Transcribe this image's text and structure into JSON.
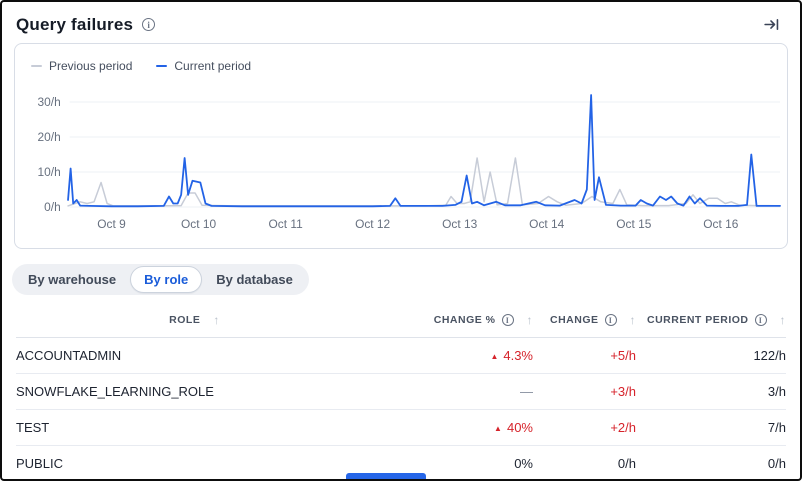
{
  "window": {
    "title": "Query failures"
  },
  "icons": {
    "info": "i",
    "sort_asc": "↑",
    "trend_up": "▲",
    "collapse_right": "arrow-to-bar"
  },
  "colors": {
    "accent_blue": "#2363e6",
    "prev_period_gray": "#c7ccd7",
    "alert_red": "#d6232b",
    "active_tab_blue": "#1a5cd9",
    "grid_line": "#edf0f5"
  },
  "chart_data": {
    "type": "line",
    "title": "Query failures per hour, current vs previous period",
    "xlabel": "",
    "ylabel": "",
    "grid": "horizontal",
    "legend_position": "top-left",
    "xlim": [
      8.52,
      16.68
    ],
    "ylim": [
      0,
      33
    ],
    "yticks": [
      {
        "v": 0,
        "label": "0/h"
      },
      {
        "v": 10,
        "label": "10/h"
      },
      {
        "v": 20,
        "label": "20/h"
      },
      {
        "v": 30,
        "label": "30/h"
      }
    ],
    "xticks": [
      {
        "v": 9,
        "label": "Oct 9"
      },
      {
        "v": 10,
        "label": "Oct 10"
      },
      {
        "v": 11,
        "label": "Oct 11"
      },
      {
        "v": 12,
        "label": "Oct 12"
      },
      {
        "v": 13,
        "label": "Oct 13"
      },
      {
        "v": 14,
        "label": "Oct 14"
      },
      {
        "v": 15,
        "label": "Oct 15"
      },
      {
        "v": 16,
        "label": "Oct 16"
      }
    ],
    "series": [
      {
        "name": "Previous period",
        "color": "#c7ccd7",
        "points": [
          [
            8.5,
            0.3
          ],
          [
            8.58,
            1
          ],
          [
            8.64,
            1.5
          ],
          [
            8.72,
            1
          ],
          [
            8.8,
            1.5
          ],
          [
            8.88,
            7
          ],
          [
            8.95,
            1
          ],
          [
            9.02,
            0.3
          ],
          [
            9.4,
            0.3
          ],
          [
            9.8,
            0.4
          ],
          [
            9.88,
            4
          ],
          [
            9.96,
            4
          ],
          [
            10.04,
            0.5
          ],
          [
            10.4,
            0.3
          ],
          [
            11.0,
            0.3
          ],
          [
            11.6,
            0.3
          ],
          [
            12.2,
            0.3
          ],
          [
            12.6,
            0.3
          ],
          [
            12.84,
            0.5
          ],
          [
            12.9,
            3
          ],
          [
            12.97,
            1
          ],
          [
            13.05,
            1
          ],
          [
            13.12,
            1.5
          ],
          [
            13.2,
            14
          ],
          [
            13.28,
            1.5
          ],
          [
            13.35,
            10
          ],
          [
            13.43,
            0.6
          ],
          [
            13.55,
            1
          ],
          [
            13.64,
            14
          ],
          [
            13.72,
            0.6
          ],
          [
            13.9,
            1
          ],
          [
            14.02,
            3
          ],
          [
            14.12,
            1.5
          ],
          [
            14.22,
            0.5
          ],
          [
            14.4,
            1
          ],
          [
            14.52,
            3
          ],
          [
            14.62,
            1.5
          ],
          [
            14.76,
            1
          ],
          [
            14.84,
            5
          ],
          [
            14.92,
            0.6
          ],
          [
            15.1,
            0.4
          ],
          [
            15.4,
            0.4
          ],
          [
            15.6,
            1
          ],
          [
            15.68,
            3.5
          ],
          [
            15.76,
            1
          ],
          [
            15.86,
            2.5
          ],
          [
            15.96,
            2.5
          ],
          [
            16.05,
            1
          ],
          [
            16.12,
            1.5
          ],
          [
            16.22,
            0.5
          ],
          [
            16.4,
            0.4
          ],
          [
            16.55,
            0.4
          ],
          [
            16.68,
            0.3
          ]
        ]
      },
      {
        "name": "Current period",
        "color": "#2363e6",
        "points": [
          [
            8.5,
            2
          ],
          [
            8.53,
            11
          ],
          [
            8.56,
            1
          ],
          [
            8.6,
            2
          ],
          [
            8.64,
            0.4
          ],
          [
            8.75,
            0.3
          ],
          [
            9.0,
            0.2
          ],
          [
            9.3,
            0.2
          ],
          [
            9.6,
            0.3
          ],
          [
            9.66,
            3
          ],
          [
            9.71,
            1
          ],
          [
            9.76,
            1
          ],
          [
            9.8,
            3.5
          ],
          [
            9.84,
            14
          ],
          [
            9.88,
            3.5
          ],
          [
            9.93,
            7.5
          ],
          [
            10.02,
            7
          ],
          [
            10.08,
            1
          ],
          [
            10.15,
            0.3
          ],
          [
            10.5,
            0.2
          ],
          [
            11.0,
            0.2
          ],
          [
            11.5,
            0.2
          ],
          [
            12.0,
            0.2
          ],
          [
            12.2,
            0.3
          ],
          [
            12.26,
            2.5
          ],
          [
            12.32,
            0.3
          ],
          [
            12.8,
            0.3
          ],
          [
            12.95,
            0.6
          ],
          [
            13.02,
            1.5
          ],
          [
            13.08,
            9
          ],
          [
            13.14,
            1
          ],
          [
            13.2,
            1.5
          ],
          [
            13.28,
            0.5
          ],
          [
            13.42,
            1.5
          ],
          [
            13.52,
            0.5
          ],
          [
            13.7,
            0.5
          ],
          [
            13.88,
            1.5
          ],
          [
            13.98,
            0.5
          ],
          [
            14.15,
            0.4
          ],
          [
            14.32,
            2
          ],
          [
            14.4,
            1
          ],
          [
            14.46,
            5
          ],
          [
            14.51,
            32
          ],
          [
            14.55,
            2
          ],
          [
            14.6,
            8.5
          ],
          [
            14.68,
            0.6
          ],
          [
            14.85,
            0.4
          ],
          [
            15.02,
            0.4
          ],
          [
            15.08,
            2
          ],
          [
            15.15,
            1
          ],
          [
            15.22,
            0.4
          ],
          [
            15.3,
            3
          ],
          [
            15.37,
            2
          ],
          [
            15.43,
            3
          ],
          [
            15.5,
            1
          ],
          [
            15.57,
            0.4
          ],
          [
            15.64,
            3
          ],
          [
            15.7,
            1
          ],
          [
            15.76,
            2.5
          ],
          [
            15.84,
            0.4
          ],
          [
            16.0,
            0.3
          ],
          [
            16.2,
            0.3
          ],
          [
            16.3,
            0.6
          ],
          [
            16.35,
            15
          ],
          [
            16.41,
            0.3
          ],
          [
            16.55,
            0.3
          ],
          [
            16.68,
            0.3
          ]
        ]
      }
    ]
  },
  "tabs": {
    "items": [
      {
        "label": "By warehouse",
        "active": false
      },
      {
        "label": "By role",
        "active": true
      },
      {
        "label": "By database",
        "active": false
      }
    ]
  },
  "table": {
    "columns": [
      {
        "label": "ROLE",
        "info": false,
        "sortable": true,
        "align": "left"
      },
      {
        "label": "CHANGE %",
        "info": true,
        "sortable": true,
        "align": "right"
      },
      {
        "label": "CHANGE",
        "info": true,
        "sortable": true,
        "align": "right"
      },
      {
        "label": "CURRENT PERIOD",
        "info": true,
        "sortable": true,
        "align": "right"
      }
    ],
    "rows": [
      {
        "role": "ACCOUNTADMIN",
        "change_pct": "4.3%",
        "pct_trend": "up",
        "change": "+5/h",
        "change_alert": true,
        "current": "122/h"
      },
      {
        "role": "SNOWFLAKE_LEARNING_ROLE",
        "change_pct": "—",
        "pct_trend": "flat",
        "change": "+3/h",
        "change_alert": true,
        "current": "3/h"
      },
      {
        "role": "TEST",
        "change_pct": "40%",
        "pct_trend": "up",
        "change": "+2/h",
        "change_alert": true,
        "current": "7/h"
      },
      {
        "role": "PUBLIC",
        "change_pct": "0%",
        "pct_trend": "none",
        "change": "0/h",
        "change_alert": false,
        "current": "0/h"
      }
    ]
  }
}
